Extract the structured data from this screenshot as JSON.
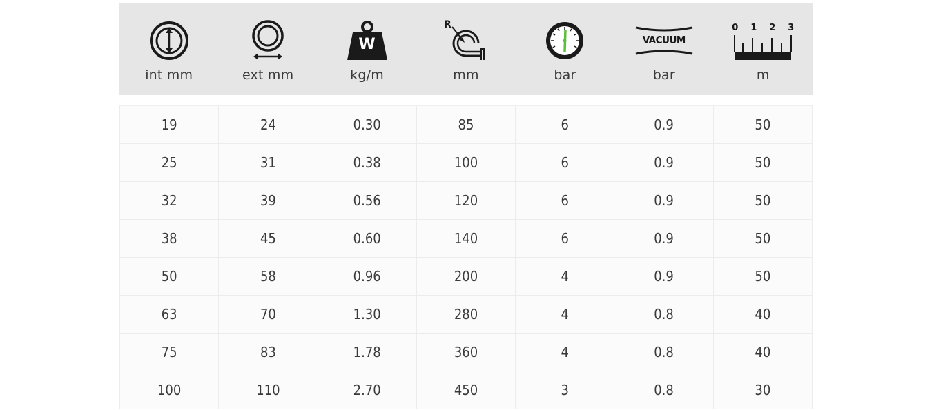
{
  "columns": [
    {
      "icon": "inner-diameter-icon",
      "unit": "int mm"
    },
    {
      "icon": "outer-diameter-icon",
      "unit": "ext mm"
    },
    {
      "icon": "weight-icon",
      "unit": "kg/m"
    },
    {
      "icon": "bend-radius-icon",
      "unit": "mm"
    },
    {
      "icon": "pressure-gauge-icon",
      "unit": "bar"
    },
    {
      "icon": "vacuum-icon",
      "unit": "bar"
    },
    {
      "icon": "length-ruler-icon",
      "unit": "m"
    }
  ],
  "icon_text": {
    "weight": "W",
    "bend_radius": "R",
    "vacuum": "VACUUM",
    "ruler_ticks": [
      "0",
      "1",
      "2",
      "3"
    ]
  },
  "colors": {
    "header_bg": "#e6e6e6",
    "gauge_needle": "#5bbf3a"
  },
  "rows": [
    [
      "19",
      "24",
      "0.30",
      "85",
      "6",
      "0.9",
      "50"
    ],
    [
      "25",
      "31",
      "0.38",
      "100",
      "6",
      "0.9",
      "50"
    ],
    [
      "32",
      "39",
      "0.56",
      "120",
      "6",
      "0.9",
      "50"
    ],
    [
      "38",
      "45",
      "0.60",
      "140",
      "6",
      "0.9",
      "50"
    ],
    [
      "50",
      "58",
      "0.96",
      "200",
      "4",
      "0.9",
      "50"
    ],
    [
      "63",
      "70",
      "1.30",
      "280",
      "4",
      "0.8",
      "40"
    ],
    [
      "75",
      "83",
      "1.78",
      "360",
      "4",
      "0.8",
      "40"
    ],
    [
      "100",
      "110",
      "2.70",
      "450",
      "3",
      "0.8",
      "30"
    ]
  ]
}
